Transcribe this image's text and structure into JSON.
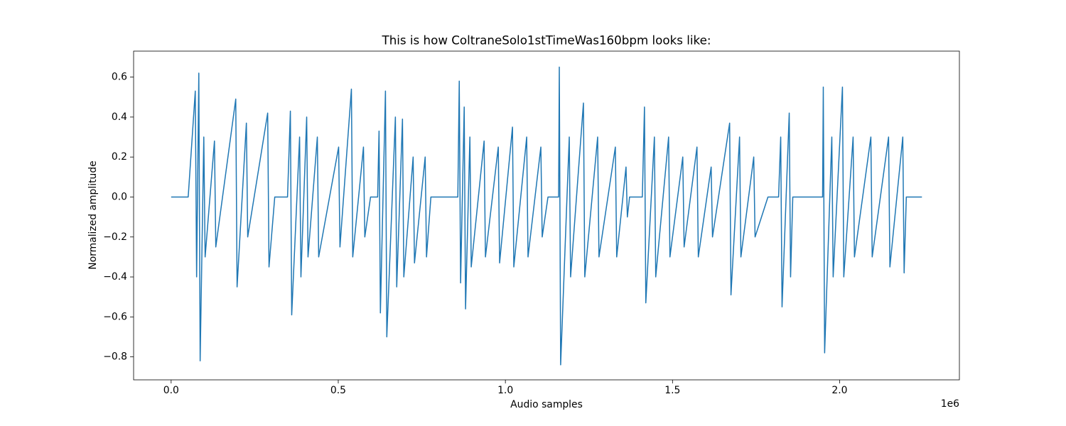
{
  "chart_data": {
    "type": "line",
    "title": "This is how ColtraneSolo1stTimeWas160bpm looks like:",
    "x_label": "Audio samples",
    "y_label": "Normalized amplitude",
    "x_offset_label": "1e6",
    "xlim": [
      -112300,
      2358300
    ],
    "ylim": [
      -0.915,
      0.73
    ],
    "xticks": [
      {
        "value": 0,
        "label": "0.0"
      },
      {
        "value": 500000,
        "label": "0.5"
      },
      {
        "value": 1000000,
        "label": "1.0"
      },
      {
        "value": 1500000,
        "label": "1.5"
      },
      {
        "value": 2000000,
        "label": "2.0"
      }
    ],
    "yticks": [
      {
        "value": -0.8,
        "label": "−0.8"
      },
      {
        "value": -0.6,
        "label": "−0.6"
      },
      {
        "value": -0.4,
        "label": "−0.4"
      },
      {
        "value": -0.2,
        "label": "−0.2"
      },
      {
        "value": 0,
        "label": "0.0"
      },
      0.2,
      0.4,
      0.6
    ],
    "grid": false,
    "series": [
      {
        "color": "#1f77b4",
        "x": [
          0,
          51000,
          72200,
          76200,
          82800,
          86800,
          97700,
          101700,
          129600,
          133600,
          193300,
          197300,
          225100,
          229100,
          288800,
          292800,
          310000,
          348200,
          356700,
          360700,
          384300,
          388300,
          405500,
          409500,
          437400,
          441400,
          501100,
          505100,
          539300,
          543300,
          575400,
          579400,
          596600,
          617800,
          622000,
          626000,
          641200,
          645200,
          670900,
          674900,
          692100,
          696100,
          724000,
          728000,
          760000,
          764000,
          777100,
          857700,
          862000,
          866000,
          876800,
          880800,
          893800,
          897800,
          936300,
          940300,
          978700,
          982700,
          1021200,
          1025200,
          1063700,
          1067700,
          1106100,
          1110100,
          1127400,
          1159200,
          1161300,
          1165300,
          1191100,
          1195100,
          1233500,
          1237500,
          1276000,
          1280000,
          1329000,
          1333000,
          1360900,
          1364900,
          1371500,
          1409700,
          1416100,
          1420100,
          1445800,
          1449800,
          1488300,
          1492300,
          1530700,
          1534700,
          1573200,
          1577200,
          1615600,
          1619600,
          1670900,
          1674900,
          1700600,
          1704600,
          1743000,
          1747000,
          1785500,
          1817300,
          1823700,
          1827700,
          1849200,
          1853200,
          1859800,
          1949000,
          1951100,
          1955100,
          1976600,
          1980600,
          2008400,
          2012400,
          2040300,
          2044300,
          2093400,
          2097400,
          2146400,
          2150400,
          2188900,
          2192900,
          2199500,
          2246200
        ],
        "values": [
          0,
          0,
          0.53,
          -0.4,
          0.62,
          -0.82,
          0.3,
          -0.3,
          0.28,
          -0.25,
          0.49,
          -0.45,
          0.37,
          -0.2,
          0.42,
          -0.35,
          0,
          0,
          0.43,
          -0.59,
          0.3,
          -0.4,
          0.4,
          -0.3,
          0.3,
          -0.3,
          0.25,
          -0.25,
          0.54,
          -0.3,
          0.25,
          -0.2,
          0,
          0,
          0.33,
          -0.58,
          0.53,
          -0.7,
          0.4,
          -0.45,
          0.39,
          -0.4,
          0.2,
          -0.33,
          0.2,
          -0.3,
          0,
          0,
          0.58,
          -0.43,
          0.45,
          -0.56,
          0.3,
          -0.35,
          0.28,
          -0.3,
          0.25,
          -0.33,
          0.35,
          -0.35,
          0.3,
          -0.3,
          0.25,
          -0.2,
          0,
          0,
          0.65,
          -0.84,
          0.3,
          -0.4,
          0.47,
          -0.4,
          0.3,
          -0.3,
          0.25,
          -0.3,
          0.15,
          -0.1,
          0,
          0,
          0.45,
          -0.53,
          0.3,
          -0.4,
          0.3,
          -0.3,
          0.2,
          -0.25,
          0.25,
          -0.3,
          0.15,
          -0.2,
          0.37,
          -0.49,
          0.3,
          -0.3,
          0.2,
          -0.2,
          0,
          0,
          0.3,
          -0.55,
          0.42,
          -0.4,
          0,
          0,
          0.55,
          -0.78,
          0.3,
          -0.4,
          0.55,
          -0.4,
          0.3,
          -0.3,
          0.3,
          -0.3,
          0.3,
          -0.35,
          0.3,
          -0.38,
          0,
          0
        ]
      }
    ]
  }
}
